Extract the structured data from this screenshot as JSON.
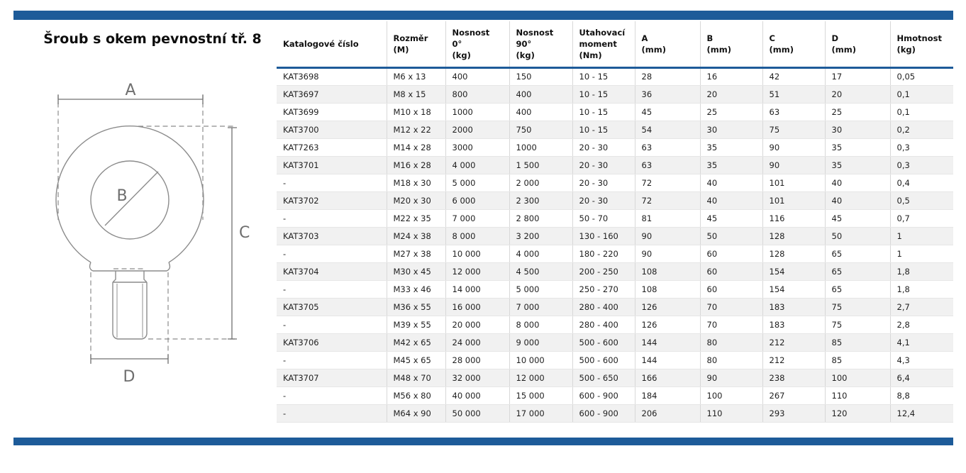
{
  "page": {
    "title": "Šroub s okem pevnostní tř. 8",
    "accent_color": "#1d5b99"
  },
  "drawing": {
    "labels": {
      "a": "A",
      "b": "B",
      "c": "C",
      "d": "D"
    }
  },
  "table": {
    "columns": [
      {
        "label": "Katalogové číslo"
      },
      {
        "label": "Rozměr\n(M)"
      },
      {
        "label": "Nosnost\n0°\n(kg)"
      },
      {
        "label": "Nosnost\n90°\n(kg)"
      },
      {
        "label": "Utahovací\nmoment\n(Nm)"
      },
      {
        "label": "A\n(mm)"
      },
      {
        "label": "B\n(mm)"
      },
      {
        "label": "C\n(mm)"
      },
      {
        "label": "D\n(mm)"
      },
      {
        "label": "Hmotnost\n(kg)"
      }
    ],
    "rows": [
      [
        "KAT3698",
        "M6 x 13",
        "400",
        "150",
        "10 - 15",
        "28",
        "16",
        "42",
        "17",
        "0,05"
      ],
      [
        "KAT3697",
        "M8 x 15",
        "800",
        "400",
        "10 - 15",
        "36",
        "20",
        "51",
        "20",
        "0,1"
      ],
      [
        "KAT3699",
        "M10 x 18",
        "1000",
        "400",
        "10 - 15",
        "45",
        "25",
        "63",
        "25",
        "0,1"
      ],
      [
        "KAT3700",
        "M12 x 22",
        "2000",
        "750",
        "10 - 15",
        "54",
        "30",
        "75",
        "30",
        "0,2"
      ],
      [
        "KAT7263",
        "M14 x 28",
        "3000",
        "1000",
        "20 - 30",
        "63",
        "35",
        "90",
        "35",
        "0,3"
      ],
      [
        "KAT3701",
        "M16 x 28",
        "4 000",
        "1 500",
        "20 - 30",
        "63",
        "35",
        "90",
        "35",
        "0,3"
      ],
      [
        "-",
        "M18 x 30",
        "5 000",
        "2 000",
        "20 - 30",
        "72",
        "40",
        "101",
        "40",
        "0,4"
      ],
      [
        "KAT3702",
        "M20 x 30",
        "6 000",
        "2 300",
        "20 - 30",
        "72",
        "40",
        "101",
        "40",
        "0,5"
      ],
      [
        "-",
        "M22 x 35",
        "7 000",
        "2 800",
        "50 - 70",
        "81",
        "45",
        "116",
        "45",
        "0,7"
      ],
      [
        "KAT3703",
        "M24 x 38",
        "8 000",
        "3 200",
        "130 - 160",
        "90",
        "50",
        "128",
        "50",
        "1"
      ],
      [
        "-",
        "M27 x 38",
        "10 000",
        "4 000",
        "180 - 220",
        "90",
        "60",
        "128",
        "65",
        "1"
      ],
      [
        "KAT3704",
        "M30 x 45",
        "12 000",
        "4 500",
        "200 - 250",
        "108",
        "60",
        "154",
        "65",
        "1,8"
      ],
      [
        "-",
        "M33 x 46",
        "14 000",
        "5 000",
        "250 - 270",
        "108",
        "60",
        "154",
        "65",
        "1,8"
      ],
      [
        "KAT3705",
        "M36 x 55",
        "16 000",
        "7 000",
        "280 - 400",
        "126",
        "70",
        "183",
        "75",
        "2,7"
      ],
      [
        "-",
        "M39 x 55",
        "20 000",
        "8 000",
        "280 - 400",
        "126",
        "70",
        "183",
        "75",
        "2,8"
      ],
      [
        "KAT3706",
        "M42 x 65",
        "24 000",
        "9 000",
        "500 - 600",
        "144",
        "80",
        "212",
        "85",
        "4,1"
      ],
      [
        "-",
        "M45 x 65",
        "28 000",
        "10 000",
        "500 - 600",
        "144",
        "80",
        "212",
        "85",
        "4,3"
      ],
      [
        "KAT3707",
        "M48 x 70",
        "32 000",
        "12 000",
        "500 - 650",
        "166",
        "90",
        "238",
        "100",
        "6,4"
      ],
      [
        "-",
        "M56 x 80",
        "40 000",
        "15 000",
        "600 - 900",
        "184",
        "100",
        "267",
        "110",
        "8,8"
      ],
      [
        "-",
        "M64 x 90",
        "50 000",
        "17 000",
        "600 - 900",
        "206",
        "110",
        "293",
        "120",
        "12,4"
      ]
    ]
  }
}
